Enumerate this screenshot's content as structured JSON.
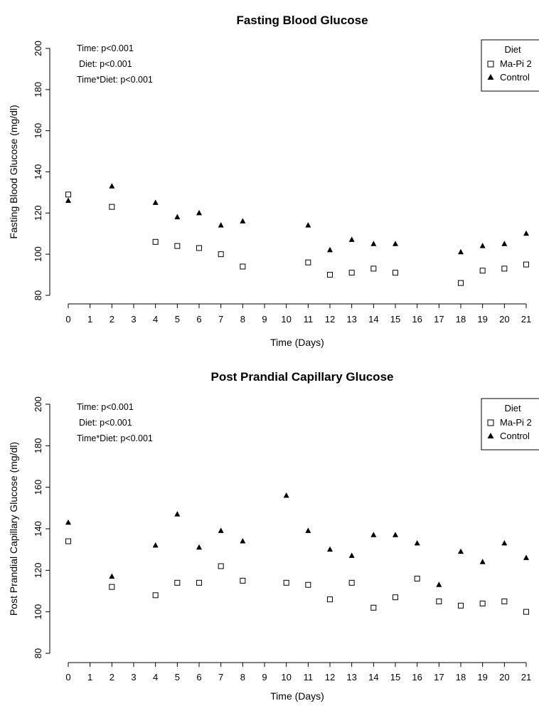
{
  "chart_data": [
    {
      "type": "scatter",
      "title": "Fasting Blood Glucose",
      "xlabel": "Time (Days)",
      "ylabel": "Fasting Blood Glucose (mg/dl)",
      "xlim": [
        0,
        21
      ],
      "ylim": [
        80,
        200
      ],
      "x_ticks": [
        0,
        1,
        2,
        3,
        4,
        5,
        6,
        7,
        8,
        9,
        10,
        11,
        12,
        13,
        14,
        15,
        16,
        17,
        18,
        19,
        20,
        21
      ],
      "y_ticks": [
        80,
        100,
        120,
        140,
        160,
        180,
        200
      ],
      "grid": false,
      "legend": {
        "title": "Diet",
        "position": "top-right"
      },
      "annotations": [
        "Time: p<0.001",
        "Diet: p<0.001",
        "Time*Diet: p<0.001"
      ],
      "series": [
        {
          "name": "Ma-Pi 2",
          "marker": "open-square",
          "color": "#000000",
          "x": [
            0,
            2,
            4,
            5,
            6,
            7,
            8,
            11,
            12,
            13,
            14,
            15,
            18,
            19,
            20,
            21
          ],
          "y": [
            129,
            123,
            106,
            104,
            103,
            100,
            94,
            96,
            90,
            91,
            93,
            91,
            86,
            92,
            93,
            95
          ]
        },
        {
          "name": "Control",
          "marker": "filled-triangle",
          "color": "#000000",
          "x": [
            0,
            2,
            4,
            5,
            6,
            7,
            8,
            11,
            12,
            13,
            14,
            15,
            18,
            19,
            20,
            21
          ],
          "y": [
            126,
            133,
            125,
            118,
            120,
            114,
            116,
            114,
            102,
            107,
            105,
            105,
            101,
            104,
            105,
            110
          ]
        }
      ]
    },
    {
      "type": "scatter",
      "title": "Post Prandial Capillary Glucose",
      "xlabel": "Time (Days)",
      "ylabel": "Post Prandial Capillary Glucose (mg/dl)",
      "xlim": [
        0,
        21
      ],
      "ylim": [
        80,
        200
      ],
      "x_ticks": [
        0,
        1,
        2,
        3,
        4,
        5,
        6,
        7,
        8,
        9,
        10,
        11,
        12,
        13,
        14,
        15,
        16,
        17,
        18,
        19,
        20,
        21
      ],
      "y_ticks": [
        80,
        100,
        120,
        140,
        160,
        180,
        200
      ],
      "grid": false,
      "legend": {
        "title": "Diet",
        "position": "top-right"
      },
      "annotations": [
        "Time: p<0.001",
        "Diet: p<0.001",
        "Time*Diet: p<0.001"
      ],
      "series": [
        {
          "name": "Ma-Pi 2",
          "marker": "open-square",
          "color": "#000000",
          "x": [
            0,
            2,
            4,
            5,
            6,
            7,
            8,
            10,
            11,
            12,
            13,
            14,
            15,
            16,
            17,
            18,
            19,
            20,
            21
          ],
          "y": [
            134,
            112,
            108,
            114,
            114,
            122,
            115,
            114,
            113,
            106,
            114,
            102,
            107,
            116,
            105,
            103,
            104,
            105,
            100
          ]
        },
        {
          "name": "Control",
          "marker": "filled-triangle",
          "color": "#000000",
          "x": [
            0,
            2,
            4,
            5,
            6,
            7,
            8,
            10,
            11,
            12,
            13,
            14,
            15,
            16,
            17,
            18,
            19,
            20,
            21
          ],
          "y": [
            143,
            117,
            132,
            147,
            131,
            139,
            134,
            156,
            139,
            130,
            127,
            137,
            137,
            133,
            113,
            129,
            124,
            133,
            126
          ]
        }
      ]
    }
  ]
}
